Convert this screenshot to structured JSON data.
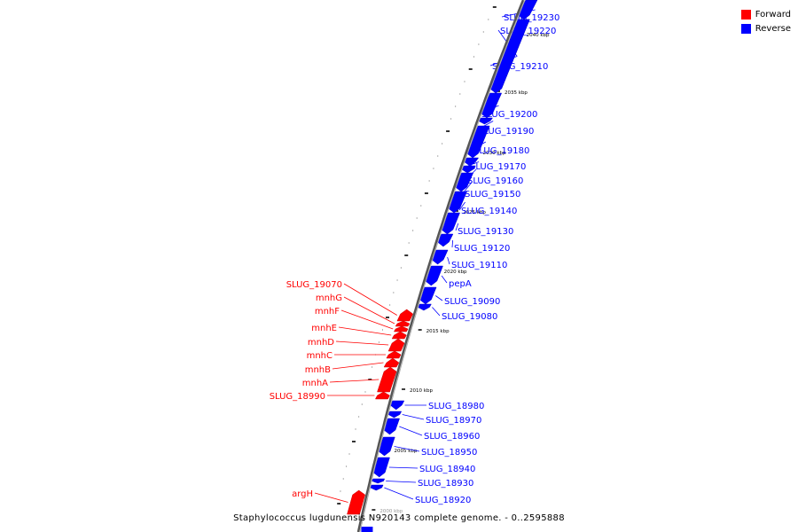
{
  "legend": {
    "forward": {
      "label": "Forward",
      "color": "#ff0000"
    },
    "reverse": {
      "label": "Reverse",
      "color": "#0000ff"
    }
  },
  "caption": "Staphylococcus lugdunensis N920143 complete genome. - 0..2595888",
  "ticks": [
    "2040 kbp",
    "2035 kbp",
    "2030 kbp",
    "2025 kbp",
    "2020 kbp",
    "2015 kbp",
    "2010 kbp",
    "2005 kbp",
    "2000 kbp"
  ],
  "reverse_genes": [
    "SLUG_19230",
    "SLUG_19220",
    "SLUG_19210",
    "SLUG_19200",
    "SLUG_19190",
    "SLUG_19180",
    "SLUG_19170",
    "SLUG_19160",
    "SLUG_19150",
    "SLUG_19140",
    "SLUG_19130",
    "SLUG_19120",
    "SLUG_19110",
    "pepA",
    "SLUG_19090",
    "SLUG_19080",
    "SLUG_18980",
    "SLUG_18970",
    "SLUG_18960",
    "SLUG_18950",
    "SLUG_18940",
    "SLUG_18930",
    "SLUG_18920"
  ],
  "forward_genes": [
    "SLUG_19070",
    "mnhG",
    "mnhF",
    "mnhE",
    "mnhD",
    "mnhC",
    "mnhB",
    "mnhA",
    "SLUG_18990",
    "argH"
  ]
}
